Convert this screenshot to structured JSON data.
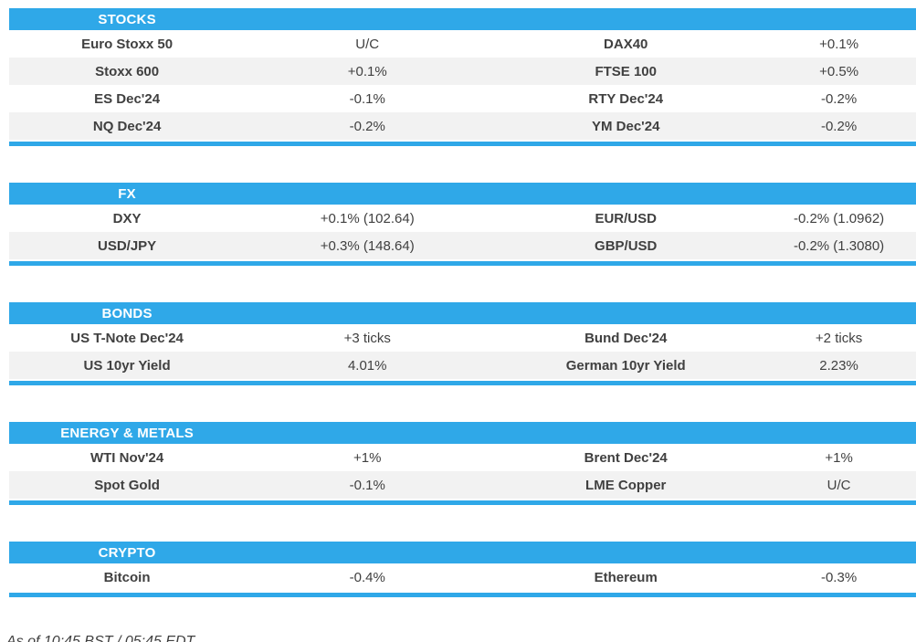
{
  "colors": {
    "accent": "#2fa8e8",
    "row_alt": "#f2f2f2",
    "text": "#404040",
    "header_text": "#ffffff"
  },
  "chart_data": [
    {
      "type": "table",
      "title": "STOCKS",
      "rows": [
        [
          "Euro Stoxx 50",
          "U/C",
          "DAX40",
          "+0.1%"
        ],
        [
          "Stoxx 600",
          "+0.1%",
          "FTSE 100",
          "+0.5%"
        ],
        [
          "ES Dec'24",
          "-0.1%",
          "RTY Dec'24",
          "-0.2%"
        ],
        [
          "NQ Dec'24",
          "-0.2%",
          "YM Dec'24",
          "-0.2%"
        ]
      ]
    },
    {
      "type": "table",
      "title": "FX",
      "rows": [
        [
          "DXY",
          "+0.1% (102.64)",
          "EUR/USD",
          "-0.2% (1.0962)"
        ],
        [
          "USD/JPY",
          "+0.3% (148.64)",
          "GBP/USD",
          "-0.2% (1.3080)"
        ]
      ]
    },
    {
      "type": "table",
      "title": "BONDS",
      "rows": [
        [
          "US T-Note Dec'24",
          "+3 ticks",
          "Bund Dec'24",
          "+2 ticks"
        ],
        [
          "US 10yr Yield",
          "4.01%",
          "German 10yr Yield",
          "2.23%"
        ]
      ]
    },
    {
      "type": "table",
      "title": "ENERGY & METALS",
      "rows": [
        [
          "WTI Nov'24",
          "+1%",
          "Brent Dec'24",
          "+1%"
        ],
        [
          "Spot Gold",
          "-0.1%",
          "LME Copper",
          "U/C"
        ]
      ]
    },
    {
      "type": "table",
      "title": "CRYPTO",
      "rows": [
        [
          "Bitcoin",
          "-0.4%",
          "Ethereum",
          "-0.3%"
        ]
      ]
    }
  ],
  "footer": {
    "as_of": "As of 10:45 BST / 05:45 EDT"
  }
}
